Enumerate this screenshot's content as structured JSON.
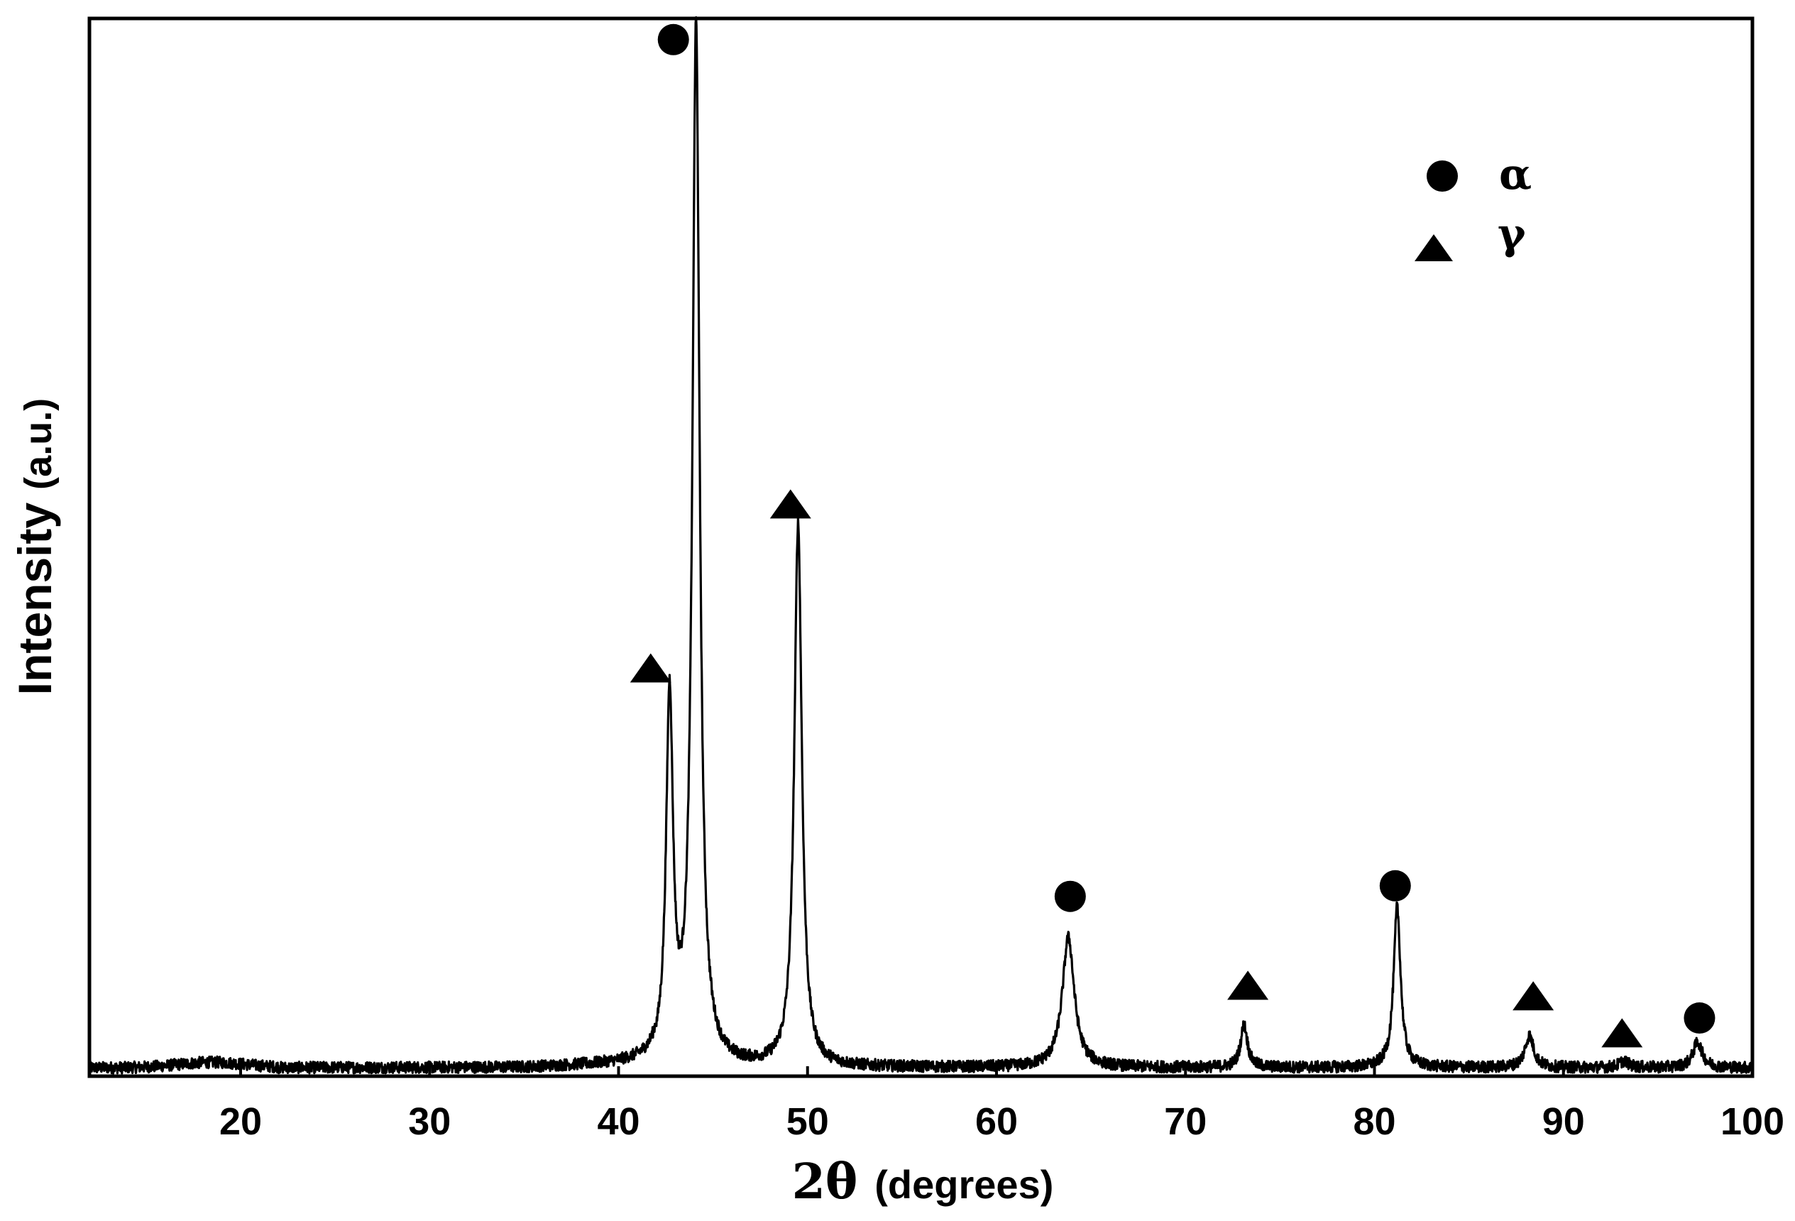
{
  "chart_data": {
    "type": "line",
    "title": "",
    "xlabel_main": "2θ",
    "xlabel_unit": "(degrees)",
    "ylabel_main": "Intensity",
    "ylabel_unit": "(a.u.)",
    "xlim": [
      12,
      100
    ],
    "ylim": [
      0,
      100
    ],
    "xticks": [
      20,
      30,
      40,
      50,
      60,
      70,
      80,
      90,
      100
    ],
    "yticks_shown": false,
    "grid": false,
    "legend_position": "top-right",
    "legend": [
      {
        "symbol": "circle",
        "label": "α"
      },
      {
        "symbol": "triangle",
        "label": "γ"
      }
    ],
    "series": [
      {
        "color": "#000000",
        "baseline": 0.8,
        "peaks": [
          {
            "x": 42.7,
            "height": 34.2,
            "width": 0.22
          },
          {
            "x": 44.1,
            "height": 98.2,
            "width": 0.23
          },
          {
            "x": 49.5,
            "height": 51.3,
            "width": 0.24
          },
          {
            "x": 63.8,
            "height": 12.3,
            "width": 0.38
          },
          {
            "x": 73.1,
            "height": 4.0,
            "width": 0.22
          },
          {
            "x": 81.2,
            "height": 15.2,
            "width": 0.22
          },
          {
            "x": 88.2,
            "height": 3.0,
            "width": 0.28
          },
          {
            "x": 93.2,
            "height": 0.6,
            "width": 0.3
          },
          {
            "x": 97.1,
            "height": 2.4,
            "width": 0.3
          }
        ]
      }
    ],
    "annotations": [
      {
        "phase": "α",
        "symbol": "circle",
        "x": 42.9,
        "y": 98.0
      },
      {
        "phase": "γ",
        "symbol": "triangle",
        "x": 41.7,
        "y": 38.5
      },
      {
        "phase": "γ",
        "symbol": "triangle",
        "x": 49.1,
        "y": 54.0
      },
      {
        "phase": "α",
        "symbol": "circle",
        "x": 63.9,
        "y": 17.0
      },
      {
        "phase": "γ",
        "symbol": "triangle",
        "x": 73.3,
        "y": 8.5
      },
      {
        "phase": "α",
        "symbol": "circle",
        "x": 81.1,
        "y": 18.0
      },
      {
        "phase": "γ",
        "symbol": "triangle",
        "x": 88.4,
        "y": 7.5
      },
      {
        "phase": "γ",
        "symbol": "triangle",
        "x": 93.1,
        "y": 4.0
      },
      {
        "phase": "α",
        "symbol": "circle",
        "x": 97.2,
        "y": 5.5
      }
    ]
  }
}
